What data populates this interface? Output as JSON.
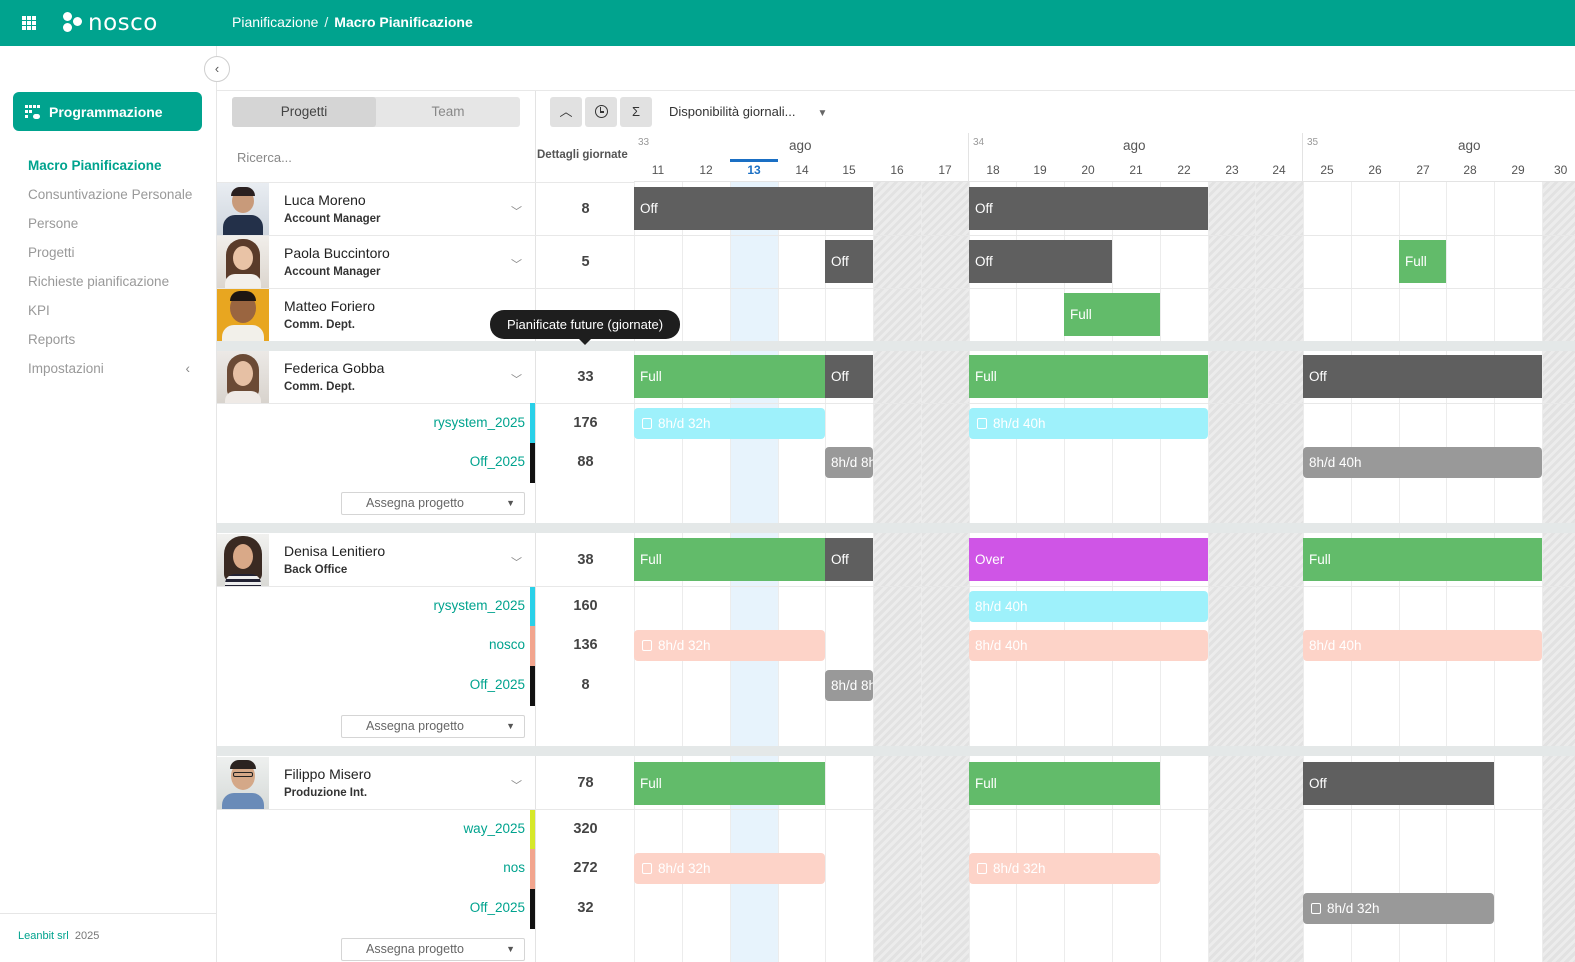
{
  "app": {
    "name": "nosco"
  },
  "breadcrumb": {
    "parent": "Pianificazione",
    "separator": "/",
    "current": "Macro Pianificazione"
  },
  "sidebar": {
    "primary_button": "Programmazione",
    "items": [
      {
        "label": "Macro Pianificazione",
        "active": true
      },
      {
        "label": "Consuntivazione Personale",
        "active": false
      },
      {
        "label": "Persone",
        "active": false
      },
      {
        "label": "Progetti",
        "active": false
      },
      {
        "label": "Richieste pianificazione",
        "active": false
      },
      {
        "label": "KPI",
        "active": false
      },
      {
        "label": "Reports",
        "active": false
      },
      {
        "label": "Impostazioni",
        "active": false
      }
    ],
    "footer_company": "Leanbit srl",
    "footer_year": "2025"
  },
  "toolbar": {
    "tabs": [
      "Progetti",
      "Team"
    ],
    "active_tab": "Progetti",
    "sigma": "Σ",
    "availability_select": "Disponibilità giornali..."
  },
  "table": {
    "search_placeholder": "Ricerca...",
    "details_header": "Dettagli giornate",
    "tooltip": "Pianificate future (giornate)",
    "assign_label": "Assegna progetto"
  },
  "calendar": {
    "weeks": [
      {
        "number": "33",
        "month": "ago",
        "days": [
          "11",
          "12",
          "13",
          "14",
          "15",
          "16",
          "17"
        ]
      },
      {
        "number": "34",
        "month": "ago",
        "days": [
          "18",
          "19",
          "20",
          "21",
          "22",
          "23",
          "24"
        ]
      },
      {
        "number": "35",
        "month": "ago",
        "days": [
          "25",
          "26",
          "27",
          "28",
          "29",
          "30"
        ]
      }
    ],
    "today": "13",
    "weekend_days": [
      "16",
      "17",
      "23",
      "24",
      "30"
    ]
  },
  "people": [
    {
      "name": "Luca Moreno",
      "role": "Account Manager",
      "days": "8"
    },
    {
      "name": "Paola Buccintoro",
      "role": "Account Manager",
      "days": "5"
    },
    {
      "name": "Matteo Foriero",
      "role": "Comm. Dept.",
      "days": ""
    },
    {
      "name": "Federica Gobba",
      "role": "Comm. Dept.",
      "days": "33",
      "projects": [
        {
          "name": "rysystem_2025",
          "days": "176",
          "color": "#2ad0e8"
        },
        {
          "name": "Off_2025",
          "days": "88",
          "color": "#111111"
        }
      ]
    },
    {
      "name": "Denisa Lenitiero",
      "role": "Back Office",
      "days": "38",
      "projects": [
        {
          "name": "rysystem_2025",
          "days": "160",
          "color": "#2ad0e8"
        },
        {
          "name": "nosco",
          "days": "136",
          "color": "#f2a58e"
        },
        {
          "name": "Off_2025",
          "days": "8",
          "color": "#111111"
        }
      ]
    },
    {
      "name": "Filippo Misero",
      "role": "Produzione Int.",
      "days": "78",
      "projects": [
        {
          "name": "way_2025",
          "days": "320",
          "color": "#d6e82a"
        },
        {
          "name": "nos",
          "days": "272",
          "color": "#f2a58e"
        },
        {
          "name": "Off_2025",
          "days": "32",
          "color": "#111111"
        }
      ]
    }
  ],
  "bars": {
    "off": "Off",
    "full": "Full",
    "over": "Over",
    "h32": "8h/d 32h",
    "h40": "8h/d 40h",
    "h8": "8h/d 8h"
  },
  "colors": {
    "brand": "#00a38e",
    "off": "#5f5f5f",
    "full": "#62bb6a",
    "over": "#cf55e6",
    "today": "#1a6fc4"
  }
}
